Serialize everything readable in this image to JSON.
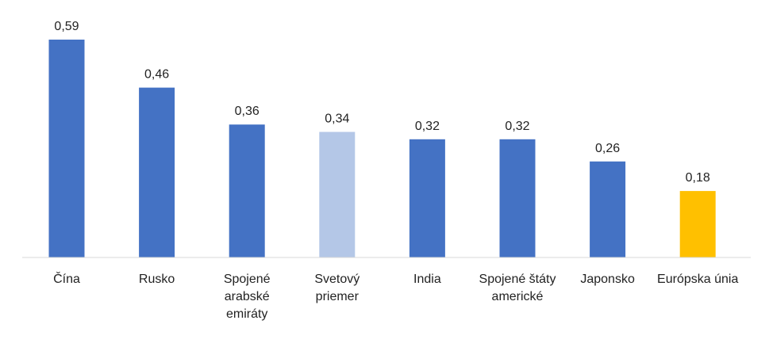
{
  "chart_data": {
    "type": "bar",
    "categories": [
      [
        "Čína"
      ],
      [
        "Rusko"
      ],
      [
        "Spojené",
        "arabské",
        "emiráty"
      ],
      [
        "Svetový",
        "priemer"
      ],
      [
        "India"
      ],
      [
        "Spojené štáty",
        "americké"
      ],
      [
        "Japonsko"
      ],
      [
        "Európska únia"
      ]
    ],
    "values": [
      0.59,
      0.46,
      0.36,
      0.34,
      0.32,
      0.32,
      0.26,
      0.18
    ],
    "value_labels": [
      "0,59",
      "0,46",
      "0,36",
      "0,34",
      "0,32",
      "0,32",
      "0,26",
      "0,18"
    ],
    "colors": [
      "#4472C4",
      "#4472C4",
      "#4472C4",
      "#B4C7E7",
      "#4472C4",
      "#4472C4",
      "#4472C4",
      "#FFC000"
    ],
    "title": "",
    "xlabel": "",
    "ylabel": "",
    "ylim": [
      0,
      0.59
    ],
    "grid": false,
    "legend": "none"
  }
}
